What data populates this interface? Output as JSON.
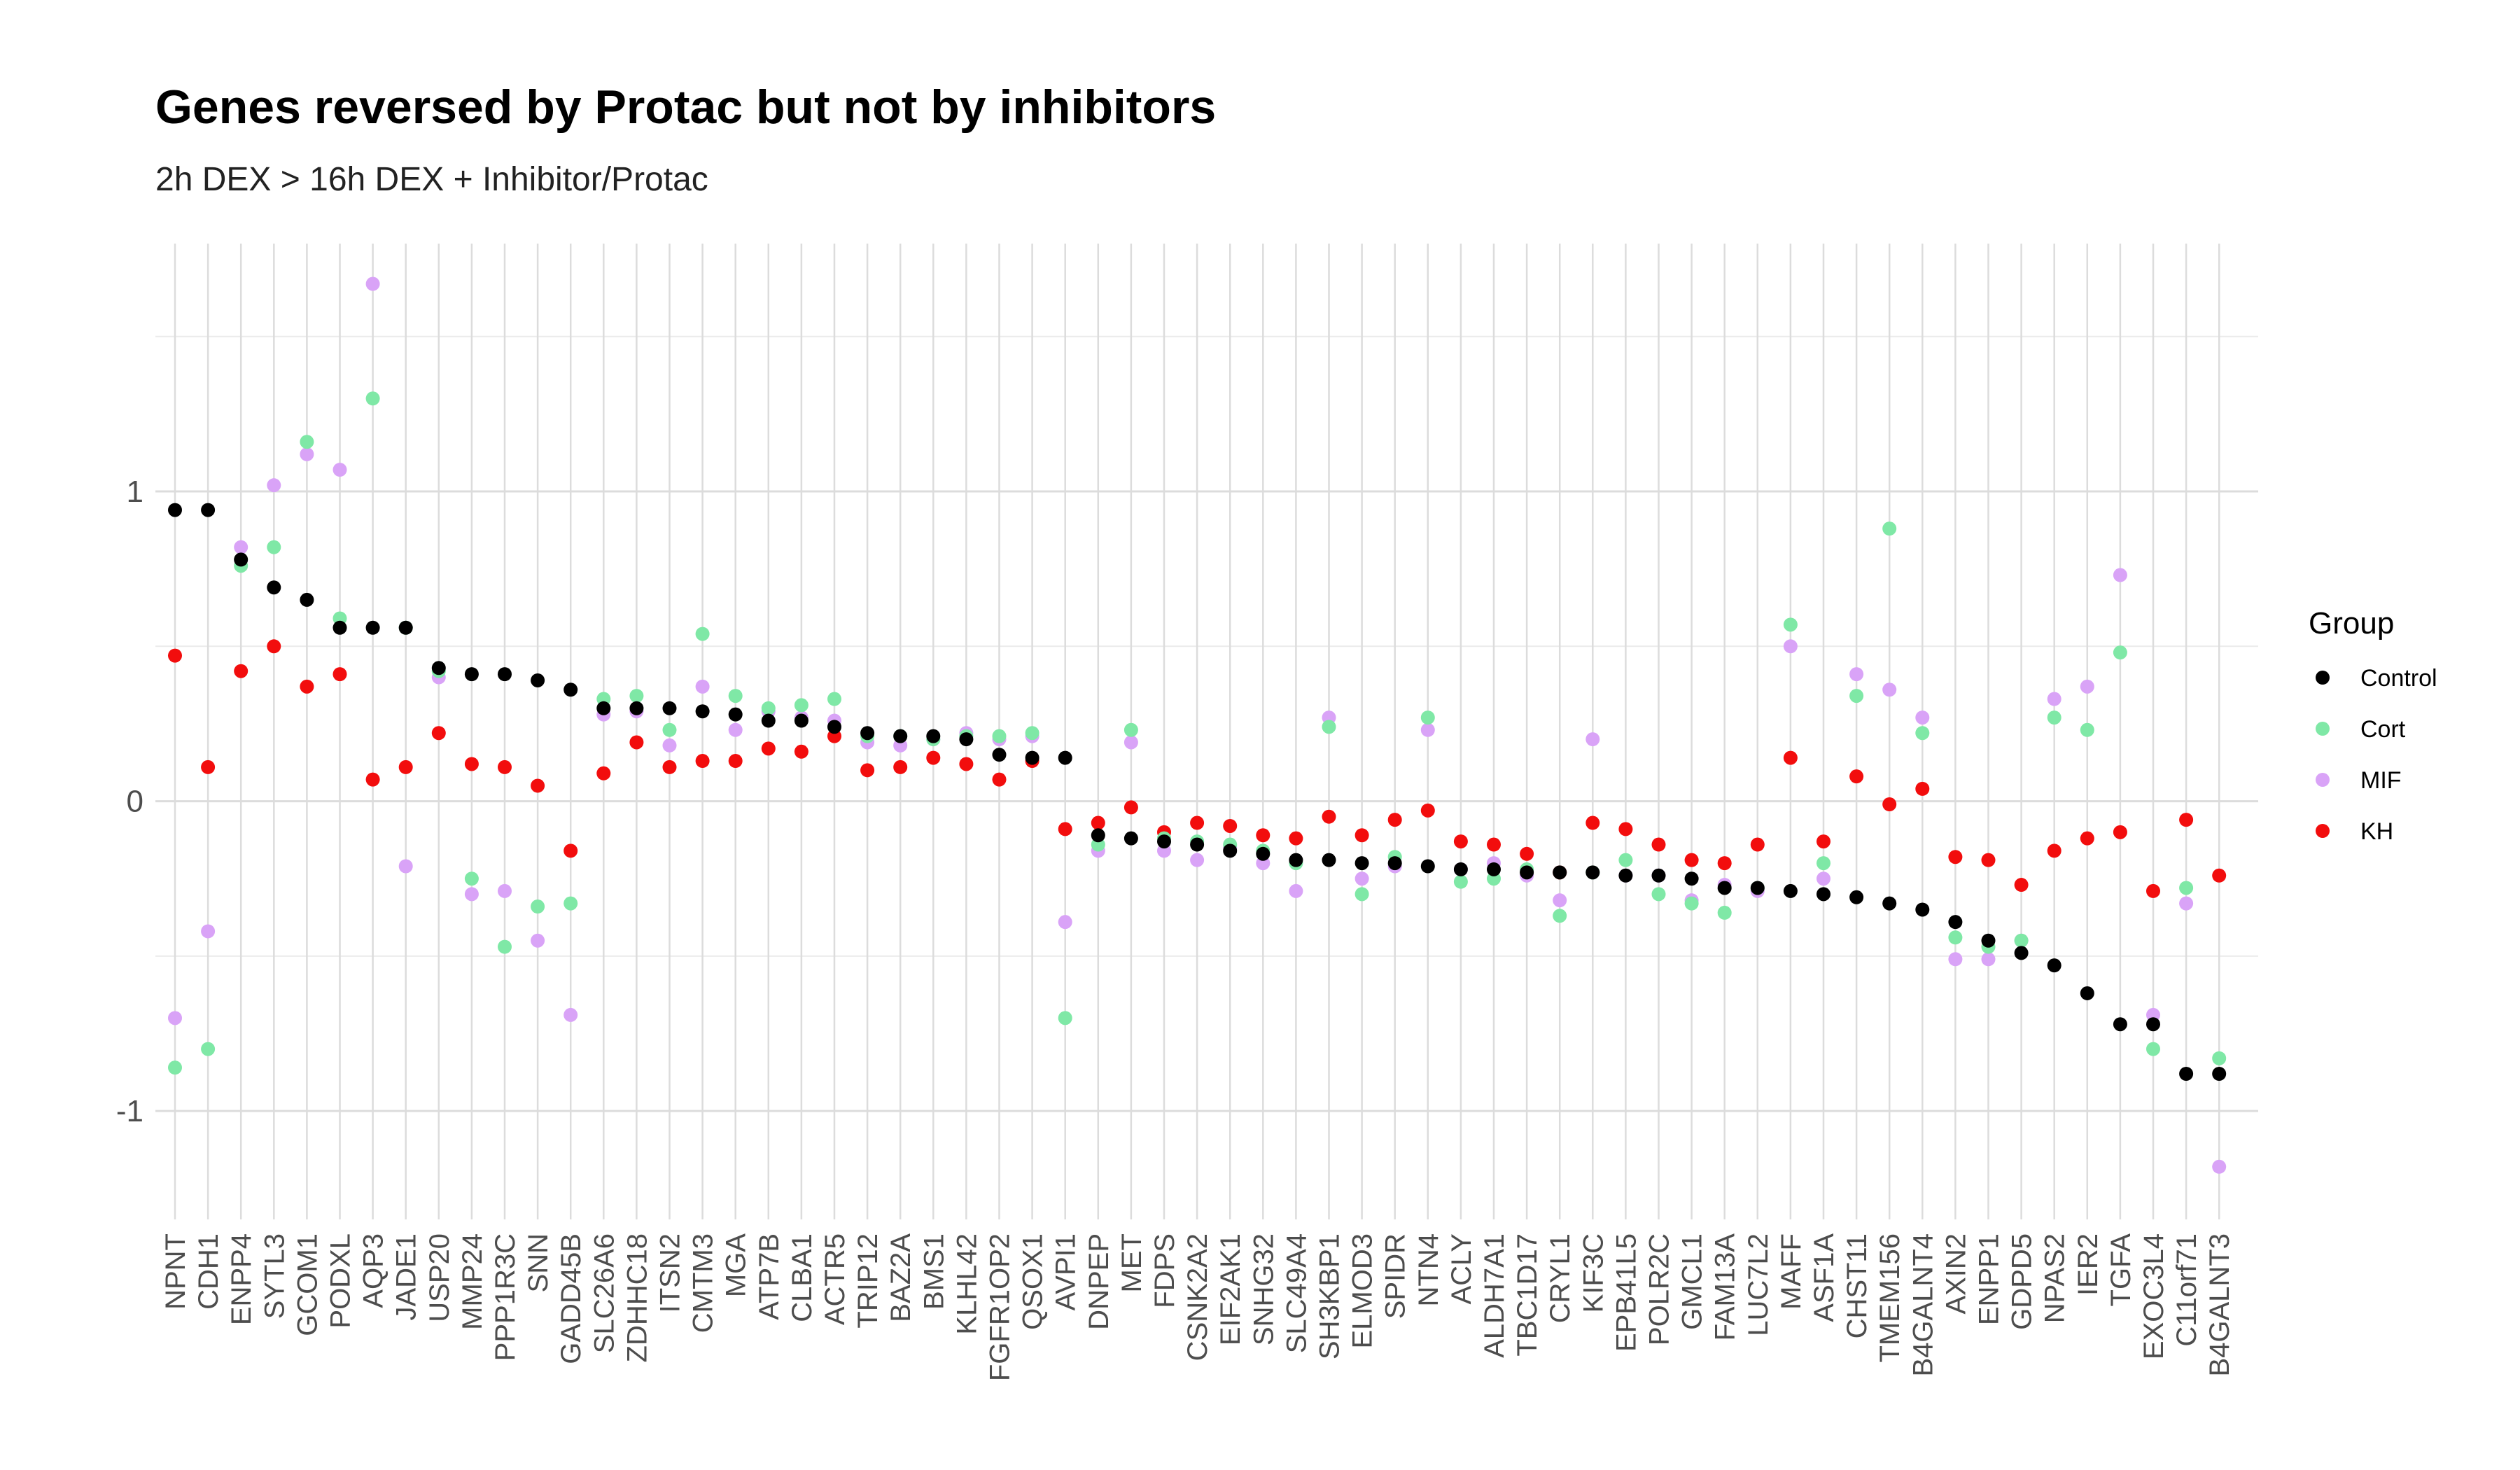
{
  "chart_data": {
    "type": "scatter",
    "title": "Genes reversed by Protac but not by inhibitors",
    "subtitle": "2h DEX > 16h DEX + Inhibitor/Protac",
    "xlabel": "",
    "ylabel": "",
    "ylim": [
      -1.35,
      1.8
    ],
    "yticks": [
      -1,
      0,
      1
    ],
    "grid": true,
    "legend": {
      "title": "Group",
      "position": "right"
    },
    "categories": [
      "NPNT",
      "CDH1",
      "ENPP4",
      "SYTL3",
      "GCOM1",
      "PODXL",
      "AQP3",
      "JADE1",
      "USP20",
      "MMP24",
      "PPP1R3C",
      "SNN",
      "GADD45B",
      "SLC26A6",
      "ZDHHC18",
      "ITSN2",
      "CMTM3",
      "MGA",
      "ATP7B",
      "CLBA1",
      "ACTR5",
      "TRIP12",
      "BAZ2A",
      "BMS1",
      "KLHL42",
      "FGFR1OP2",
      "QSOX1",
      "AVPI1",
      "DNPEP",
      "MET",
      "FDPS",
      "CSNK2A2",
      "EIF2AK1",
      "SNHG32",
      "SLC49A4",
      "SH3KBP1",
      "ELMOD3",
      "SPIDR",
      "NTN4",
      "ACLY",
      "ALDH7A1",
      "TBC1D17",
      "CRYL1",
      "KIF3C",
      "EPB41L5",
      "POLR2C",
      "GMCL1",
      "FAM13A",
      "LUC7L2",
      "MAFF",
      "ASF1A",
      "CHST11",
      "TMEM156",
      "B4GALNT4",
      "AXIN2",
      "ENPP1",
      "GDPD5",
      "NPAS2",
      "IER2",
      "TGFA",
      "EXOC3L4",
      "C11orf71",
      "B4GALNT3"
    ],
    "series": [
      {
        "name": "Control",
        "color": "#000000",
        "values": [
          0.94,
          0.94,
          0.78,
          0.69,
          0.65,
          0.56,
          0.56,
          0.56,
          0.43,
          0.41,
          0.41,
          0.39,
          0.36,
          0.3,
          0.3,
          0.3,
          0.29,
          0.28,
          0.26,
          0.26,
          0.24,
          0.22,
          0.21,
          0.21,
          0.2,
          0.15,
          0.14,
          0.14,
          -0.11,
          -0.12,
          -0.13,
          -0.14,
          -0.16,
          -0.17,
          -0.19,
          -0.19,
          -0.2,
          -0.2,
          -0.21,
          -0.22,
          -0.22,
          -0.23,
          -0.23,
          -0.23,
          -0.24,
          -0.24,
          -0.25,
          -0.28,
          -0.28,
          -0.29,
          -0.3,
          -0.31,
          -0.33,
          -0.35,
          -0.39,
          -0.45,
          -0.49,
          -0.53,
          -0.62,
          -0.72,
          -0.72,
          -0.88,
          -0.88
        ]
      },
      {
        "name": "Cort",
        "color": "#7fe8a6",
        "values": [
          -0.86,
          -0.8,
          0.76,
          0.82,
          1.16,
          0.59,
          1.3,
          0.56,
          0.42,
          -0.25,
          -0.47,
          -0.34,
          -0.33,
          0.33,
          0.34,
          0.23,
          0.54,
          0.34,
          0.3,
          0.31,
          0.33,
          0.21,
          0.21,
          0.2,
          0.21,
          0.21,
          0.22,
          -0.7,
          -0.14,
          0.23,
          -0.12,
          -0.13,
          -0.14,
          -0.16,
          -0.2,
          0.24,
          -0.3,
          -0.18,
          0.27,
          -0.26,
          -0.25,
          -0.22,
          -0.37,
          -0.23,
          -0.19,
          -0.3,
          -0.33,
          -0.36,
          -0.28,
          0.57,
          -0.2,
          0.34,
          0.88,
          0.22,
          -0.44,
          -0.47,
          -0.45,
          0.27,
          0.23,
          0.48,
          -0.8,
          -0.28,
          -0.83
        ]
      },
      {
        "name": "MIF",
        "color": "#d9a3f7",
        "values": [
          -0.7,
          -0.42,
          0.82,
          1.02,
          1.12,
          1.07,
          1.67,
          -0.21,
          0.4,
          -0.3,
          -0.29,
          -0.45,
          -0.69,
          0.28,
          0.29,
          0.18,
          0.37,
          0.23,
          0.29,
          0.27,
          0.26,
          0.19,
          0.18,
          0.2,
          0.22,
          0.2,
          0.21,
          -0.39,
          -0.16,
          0.19,
          -0.16,
          -0.19,
          -0.15,
          -0.2,
          -0.29,
          0.27,
          -0.25,
          -0.21,
          0.23,
          -0.22,
          -0.2,
          -0.24,
          -0.32,
          0.2,
          -0.24,
          -0.24,
          -0.32,
          -0.27,
          -0.29,
          0.5,
          -0.25,
          0.41,
          0.36,
          0.27,
          -0.51,
          -0.51,
          -0.45,
          0.33,
          0.37,
          0.73,
          -0.69,
          -0.33,
          -1.18
        ]
      },
      {
        "name": "KH",
        "color": "#f20d0d",
        "values": [
          0.47,
          0.11,
          0.42,
          0.5,
          0.37,
          0.41,
          0.07,
          0.11,
          0.22,
          0.12,
          0.11,
          0.05,
          -0.16,
          0.09,
          0.19,
          0.11,
          0.13,
          0.13,
          0.17,
          0.16,
          0.21,
          0.1,
          0.11,
          0.14,
          0.12,
          0.07,
          0.13,
          -0.09,
          -0.07,
          -0.02,
          -0.1,
          -0.07,
          -0.08,
          -0.11,
          -0.12,
          -0.05,
          -0.11,
          -0.06,
          -0.03,
          -0.13,
          -0.14,
          -0.17,
          -0.23,
          -0.07,
          -0.09,
          -0.14,
          -0.19,
          -0.2,
          -0.14,
          0.14,
          -0.13,
          0.08,
          -0.01,
          0.04,
          -0.18,
          -0.19,
          -0.27,
          -0.16,
          -0.12,
          -0.1,
          -0.29,
          -0.06,
          -0.24
        ]
      }
    ]
  }
}
